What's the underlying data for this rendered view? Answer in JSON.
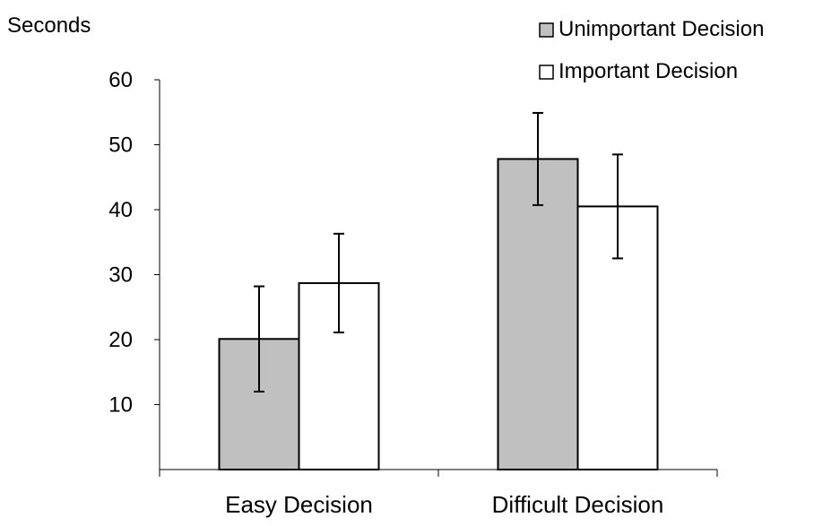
{
  "chart_data": {
    "type": "bar",
    "title": "",
    "ylabel": "Seconds",
    "xlabel": "",
    "categories": [
      "Easy Decision",
      "Difficult Decision"
    ],
    "series": [
      {
        "name": "Unimportant Decision",
        "color": "#c0c0c0",
        "values": [
          20.1,
          47.8
        ],
        "error": [
          8.1,
          7.1
        ]
      },
      {
        "name": "Important Decision",
        "color": "#ffffff",
        "values": [
          28.7,
          40.5
        ],
        "error": [
          7.6,
          8.0
        ]
      }
    ],
    "ylim": [
      0,
      60
    ],
    "yticks": [
      10,
      20,
      30,
      40,
      50,
      60
    ],
    "grid": false,
    "legend": "top-right"
  }
}
